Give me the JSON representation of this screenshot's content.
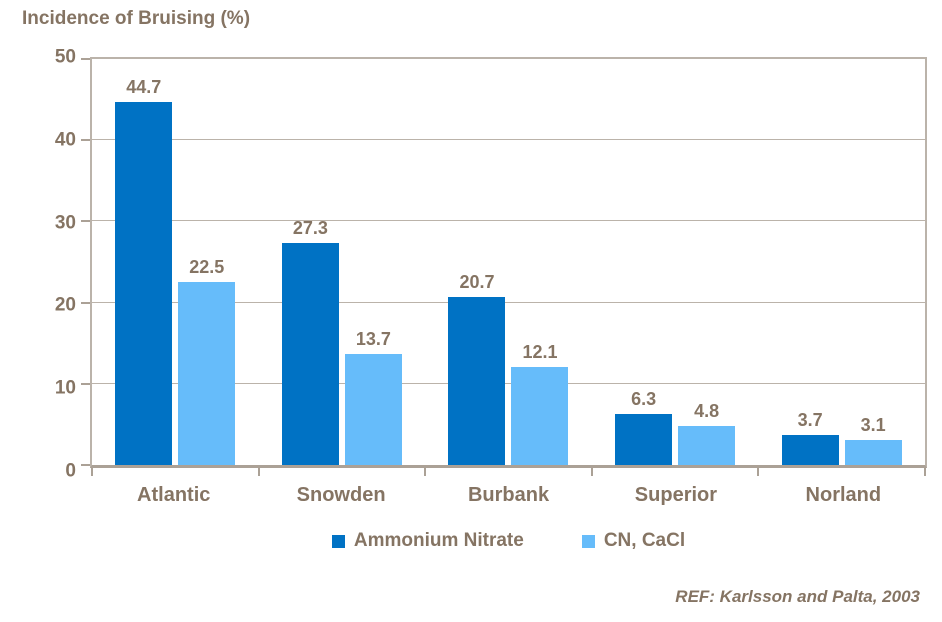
{
  "title": "Incidence of Bruising (%)",
  "footer": {
    "ref": "REF: Karlsson and Palta, 2003"
  },
  "colors": {
    "series1": "#0072C4",
    "series2": "#66BCFA",
    "text": "#857463",
    "grid": "#BBB3AA",
    "axis": "#ABA196"
  },
  "legend": {
    "items": [
      {
        "label": "Ammonium Nitrate",
        "color": "#0072C4"
      },
      {
        "label": "CN, CaCl",
        "color": "#66BCFA"
      }
    ]
  },
  "chart_data": {
    "type": "bar",
    "title": "Incidence of Bruising (%)",
    "categories": [
      "Atlantic",
      "Snowden",
      "Burbank",
      "Superior",
      "Norland"
    ],
    "series": [
      {
        "name": "Ammonium Nitrate",
        "color": "#0072C4",
        "values": [
          44.7,
          27.3,
          20.7,
          6.3,
          3.7
        ]
      },
      {
        "name": "CN, CaCl",
        "color": "#66BCFA",
        "values": [
          22.5,
          13.7,
          12.1,
          4.8,
          3.1
        ]
      }
    ],
    "xlabel": "",
    "ylabel": "",
    "ylim": [
      0,
      50
    ],
    "yticks": [
      0,
      10,
      20,
      30,
      40,
      50
    ],
    "grid": true,
    "data_labels": true,
    "legend_position": "bottom",
    "annotation": "REF: Karlsson and Palta, 2003"
  }
}
